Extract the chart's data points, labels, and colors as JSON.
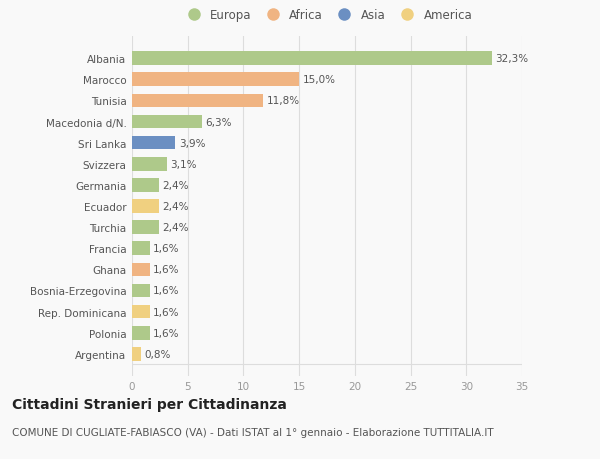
{
  "categories": [
    "Albania",
    "Marocco",
    "Tunisia",
    "Macedonia d/N.",
    "Sri Lanka",
    "Svizzera",
    "Germania",
    "Ecuador",
    "Turchia",
    "Francia",
    "Ghana",
    "Bosnia-Erzegovina",
    "Rep. Dominicana",
    "Polonia",
    "Argentina"
  ],
  "values": [
    32.3,
    15.0,
    11.8,
    6.3,
    3.9,
    3.1,
    2.4,
    2.4,
    2.4,
    1.6,
    1.6,
    1.6,
    1.6,
    1.6,
    0.8
  ],
  "labels": [
    "32,3%",
    "15,0%",
    "11,8%",
    "6,3%",
    "3,9%",
    "3,1%",
    "2,4%",
    "2,4%",
    "2,4%",
    "1,6%",
    "1,6%",
    "1,6%",
    "1,6%",
    "1,6%",
    "0,8%"
  ],
  "colors": [
    "#aec98a",
    "#f0b482",
    "#f0b482",
    "#aec98a",
    "#6b8fc2",
    "#aec98a",
    "#aec98a",
    "#f0d080",
    "#aec98a",
    "#aec98a",
    "#f0b482",
    "#aec98a",
    "#f0d080",
    "#aec98a",
    "#f0d080"
  ],
  "legend_labels": [
    "Europa",
    "Africa",
    "Asia",
    "America"
  ],
  "legend_colors": [
    "#aec98a",
    "#f0b482",
    "#6b8fc2",
    "#f0d080"
  ],
  "title": "Cittadini Stranieri per Cittadinanza",
  "subtitle": "COMUNE DI CUGLIATE-FABIASCO (VA) - Dati ISTAT al 1° gennaio - Elaborazione TUTTITALIA.IT",
  "xlim": [
    0,
    35
  ],
  "xticks": [
    0,
    5,
    10,
    15,
    20,
    25,
    30,
    35
  ],
  "background_color": "#f9f9f9",
  "grid_color": "#dddddd",
  "bar_height": 0.65,
  "title_fontsize": 10,
  "subtitle_fontsize": 7.5,
  "tick_fontsize": 7.5,
  "label_fontsize": 7.5
}
